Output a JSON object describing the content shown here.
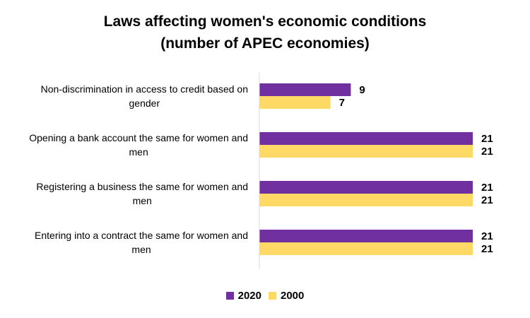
{
  "chart_data": {
    "type": "bar",
    "orientation": "horizontal",
    "title": [
      "Laws affecting women's economic conditions",
      "(number of APEC economies)"
    ],
    "categories": [
      [
        "Non-discrimination in access to credit based on",
        "gender"
      ],
      [
        "Opening a bank account the same for women and",
        "men"
      ],
      [
        "Registering a business the same for women and",
        "men"
      ],
      [
        "Entering into a contract the same for women and",
        "men"
      ]
    ],
    "series": [
      {
        "name": "2020",
        "color": "#7030A0",
        "values": [
          9,
          21,
          21,
          21
        ]
      },
      {
        "name": "2000",
        "color": "#FFD966",
        "values": [
          7,
          21,
          21,
          21
        ]
      }
    ],
    "xlim": [
      0,
      21
    ],
    "grid": false,
    "legend": "bottom-center"
  }
}
